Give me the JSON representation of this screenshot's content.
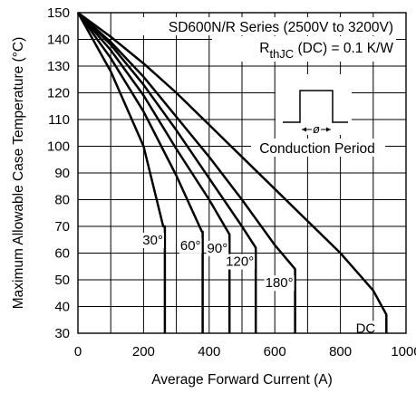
{
  "chart_data": {
    "type": "line",
    "title": "",
    "xlabel": "Average Forward Current (A)",
    "ylabel": "Maximum Allowable Case Temperature (°C)",
    "xlim": [
      0,
      1000
    ],
    "ylim": [
      30,
      150
    ],
    "xticks": [
      0,
      200,
      400,
      600,
      800,
      1000
    ],
    "yticks": [
      30,
      40,
      50,
      60,
      70,
      80,
      90,
      100,
      110,
      120,
      130,
      140,
      150
    ],
    "grid": true,
    "annotations": {
      "series_note": "SD600N/R Series (2500V to 3200V)",
      "rth_prefix": "R",
      "rth_sub": "thJC",
      "rth_suffix": " (DC) = 0.1 K/W",
      "inset_symbol": "ø",
      "inset_label": "Conduction Period"
    },
    "series": [
      {
        "name": "30°",
        "x": [
          0,
          100,
          200,
          260,
          265,
          265
        ],
        "y": [
          150,
          128,
          100,
          70,
          70,
          30
        ]
      },
      {
        "name": "60°",
        "x": [
          0,
          100,
          200,
          300,
          378,
          380,
          380
        ],
        "y": [
          150,
          133,
          113,
          89,
          68,
          68,
          30
        ]
      },
      {
        "name": "90°",
        "x": [
          0,
          100,
          200,
          300,
          400,
          462,
          462
        ],
        "y": [
          150,
          136,
          119,
          99,
          80,
          67,
          30
        ]
      },
      {
        "name": "120°",
        "x": [
          0,
          100,
          200,
          300,
          400,
          500,
          542,
          542
        ],
        "y": [
          150,
          138,
          123,
          106,
          88,
          70,
          62,
          30
        ]
      },
      {
        "name": "180°",
        "x": [
          0,
          100,
          200,
          300,
          400,
          500,
          600,
          662,
          662
        ],
        "y": [
          150,
          139,
          126,
          111,
          96,
          80,
          63,
          54,
          30
        ]
      },
      {
        "name": "DC",
        "x": [
          0,
          100,
          200,
          300,
          400,
          500,
          600,
          700,
          800,
          900,
          940,
          940
        ],
        "y": [
          150,
          141,
          131,
          120,
          108,
          96,
          84,
          72,
          60,
          46,
          37,
          30
        ]
      }
    ]
  }
}
